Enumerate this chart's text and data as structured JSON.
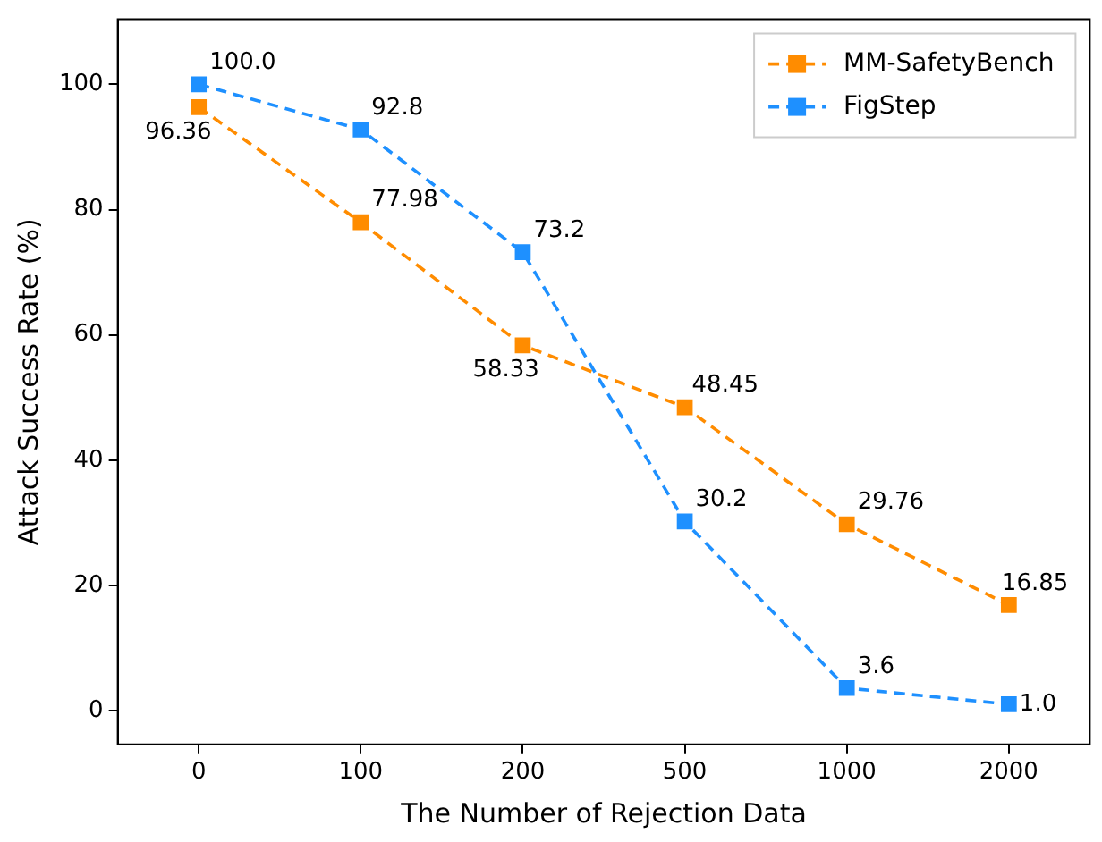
{
  "chart_data": {
    "type": "line",
    "xlabel": "The Number of Rejection Data",
    "ylabel": "Attack Success Rate (%)",
    "categories": [
      "0",
      "100",
      "200",
      "500",
      "1000",
      "2000"
    ],
    "series": [
      {
        "name": "MM-SafetyBench",
        "color": "#ff8c00",
        "values": [
          96.36,
          77.98,
          58.33,
          48.45,
          29.76,
          16.85
        ],
        "value_labels": [
          "96.36",
          "77.98",
          "58.33",
          "48.45",
          "29.76",
          "16.85"
        ]
      },
      {
        "name": "FigStep",
        "color": "#1e90ff",
        "values": [
          100.0,
          92.8,
          73.2,
          30.2,
          3.6,
          1.0
        ],
        "value_labels": [
          "100.0",
          "92.8",
          "73.2",
          "30.2",
          "3.6",
          "1.0"
        ]
      }
    ],
    "ylim": [
      -5.4,
      110.4
    ],
    "yticks": [
      0,
      20,
      40,
      60,
      80,
      100
    ],
    "grid": false,
    "legend": "top right",
    "marker": "square",
    "line_style": "dashed"
  }
}
